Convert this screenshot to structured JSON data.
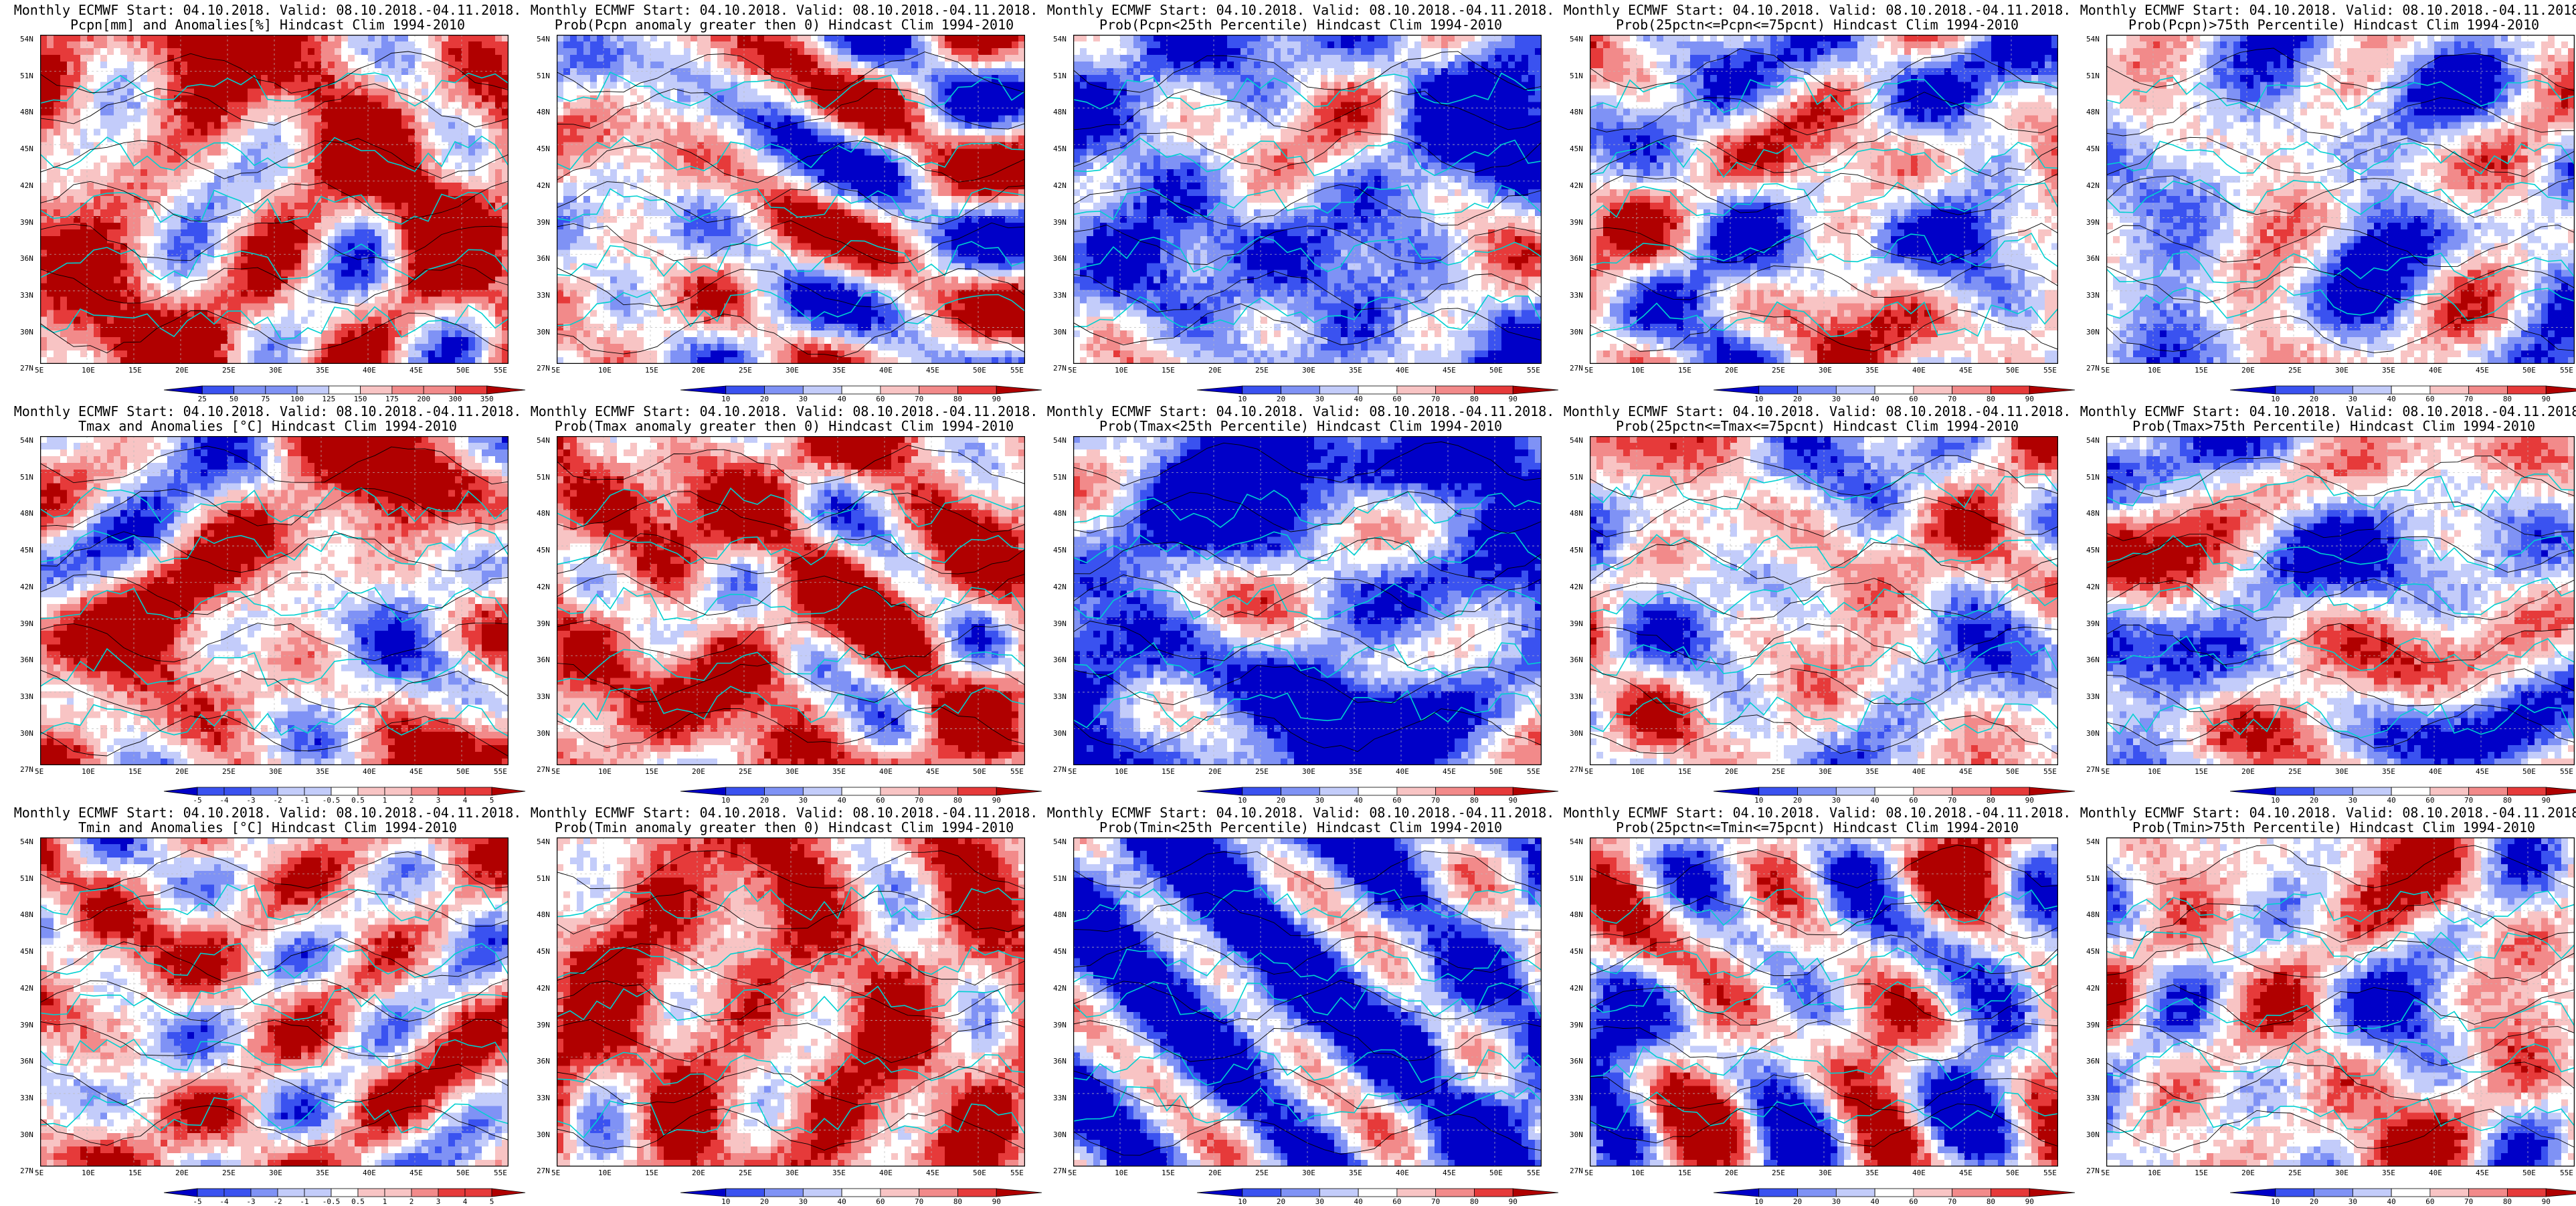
{
  "header_line": "Monthly ECMWF Start: 04.10.2018. Valid: 08.10.2018.-04.11.2018.",
  "lon_labels": [
    "5E",
    "10E",
    "15E",
    "20E",
    "25E",
    "30E",
    "35E",
    "40E",
    "45E",
    "50E",
    "55E"
  ],
  "lat_labels": [
    "54N",
    "51N",
    "48N",
    "45N",
    "42N",
    "39N",
    "36N",
    "33N",
    "30N",
    "27N"
  ],
  "colors": {
    "blue_dark": "#0000c8",
    "blue_mid": "#3a52f0",
    "blue_light": "#7f92f5",
    "blue_pale": "#c3ccfa",
    "white": "#ffffff",
    "red_pale": "#f8c4c4",
    "red_light": "#f28a8a",
    "red_mid": "#e63a3a",
    "red_dark": "#b00000",
    "coast": "#00d0d0",
    "contour": "#000000"
  },
  "panels": [
    {
      "title": "Pcpn[mm] and Anomalies[%] Hindcast Clim 1994-2010",
      "colorbar_labels": [
        "25",
        "50",
        "75",
        "100",
        "125",
        "150",
        "175",
        "200",
        "300",
        "350"
      ],
      "bias": 0.55,
      "seed": 11
    },
    {
      "title": "Prob(Pcpn anomaly greater then 0) Hindcast Clim 1994-2010",
      "colorbar_labels": [
        "10",
        "20",
        "30",
        "40",
        "60",
        "70",
        "80",
        "90"
      ],
      "bias": 0.05,
      "seed": 12
    },
    {
      "title": "Prob(Pcpn<25th Percentile) Hindcast Clim 1994-2010",
      "colorbar_labels": [
        "10",
        "20",
        "30",
        "40",
        "60",
        "70",
        "80",
        "90"
      ],
      "bias": -0.45,
      "seed": 13
    },
    {
      "title": "Prob(25pctn<=Pcpn<=75pcnt) Hindcast Clim 1994-2010",
      "colorbar_labels": [
        "10",
        "20",
        "30",
        "40",
        "60",
        "70",
        "80",
        "90"
      ],
      "bias": -0.1,
      "seed": 14
    },
    {
      "title": "Prob(Pcpn)>75th Percentile) Hindcast Clim 1994-2010",
      "colorbar_labels": [
        "10",
        "20",
        "30",
        "40",
        "60",
        "70",
        "80",
        "90"
      ],
      "bias": -0.2,
      "seed": 15
    },
    {
      "title": "Tmax and Anomalies [°C] Hindcast Clim 1994-2010",
      "colorbar_labels": [
        "-5",
        "-4",
        "-3",
        "-2",
        "-1",
        "-0.5",
        "0.5",
        "1",
        "2",
        "3",
        "4",
        "5"
      ],
      "bias": 0.3,
      "seed": 21
    },
    {
      "title": "Prob(Tmax anomaly greater then 0) Hindcast Clim 1994-2010",
      "colorbar_labels": [
        "10",
        "20",
        "30",
        "40",
        "60",
        "70",
        "80",
        "90"
      ],
      "bias": 0.55,
      "seed": 22
    },
    {
      "title": "Prob(Tmax<25th Percentile) Hindcast Clim 1994-2010",
      "colorbar_labels": [
        "10",
        "20",
        "30",
        "40",
        "60",
        "70",
        "80",
        "90"
      ],
      "bias": -0.65,
      "seed": 23
    },
    {
      "title": "Prob(25pctn<=Tmax<=75pcnt) Hindcast Clim 1994-2010",
      "colorbar_labels": [
        "10",
        "20",
        "30",
        "40",
        "60",
        "70",
        "80",
        "90"
      ],
      "bias": 0.0,
      "seed": 24
    },
    {
      "title": "Prob(Tmax>75th Percentile) Hindcast Clim 1994-2010",
      "colorbar_labels": [
        "10",
        "20",
        "30",
        "40",
        "60",
        "70",
        "80",
        "90"
      ],
      "bias": -0.1,
      "seed": 25
    },
    {
      "title": "Tmin and Anomalies [°C] Hindcast Clim 1994-2010",
      "colorbar_labels": [
        "-5",
        "-4",
        "-3",
        "-2",
        "-1",
        "-0.5",
        "0.5",
        "1",
        "2",
        "3",
        "4",
        "5"
      ],
      "bias": 0.25,
      "seed": 31
    },
    {
      "title": "Prob(Tmin anomaly greater then 0) Hindcast Clim 1994-2010",
      "colorbar_labels": [
        "10",
        "20",
        "30",
        "40",
        "60",
        "70",
        "80",
        "90"
      ],
      "bias": 0.6,
      "seed": 32
    },
    {
      "title": "Prob(Tmin<25th Percentile) Hindcast Clim 1994-2010",
      "colorbar_labels": [
        "10",
        "20",
        "30",
        "40",
        "60",
        "70",
        "80",
        "90"
      ],
      "bias": -0.65,
      "seed": 33
    },
    {
      "title": "Prob(25pctn<=Tmin<=75pcnt) Hindcast Clim 1994-2010",
      "colorbar_labels": [
        "10",
        "20",
        "30",
        "40",
        "60",
        "70",
        "80",
        "90"
      ],
      "bias": 0.0,
      "seed": 34
    },
    {
      "title": "Prob(Tmin>75th Percentile) Hindcast Clim 1994-2010",
      "colorbar_labels": [
        "10",
        "20",
        "30",
        "40",
        "60",
        "70",
        "80",
        "90"
      ],
      "bias": 0.1,
      "seed": 35
    }
  ]
}
